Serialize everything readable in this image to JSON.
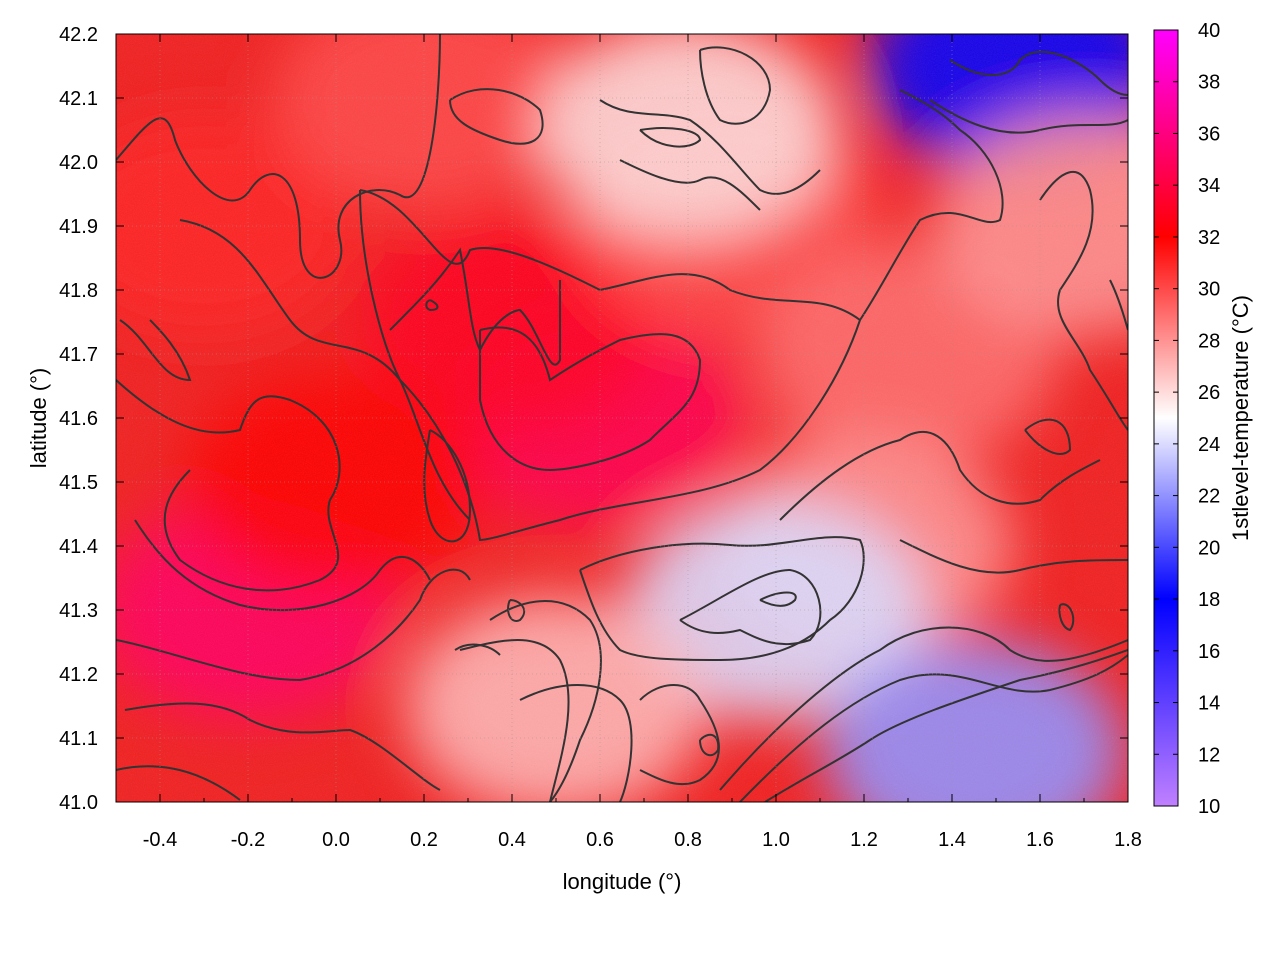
{
  "chart_data": {
    "type": "heatmap",
    "title": "",
    "xlabel": "longitude (°)",
    "ylabel": "latitude (°)",
    "colorbar_label": "1stlevel-temperature (°C)",
    "xlim": [
      -0.5,
      1.8
    ],
    "ylim": [
      41.0,
      42.2
    ],
    "x_ticks": [
      "-0.4",
      "-0.2",
      "0.0",
      "0.2",
      "0.4",
      "0.6",
      "0.8",
      "1.0",
      "1.2",
      "1.4",
      "1.6",
      "1.8"
    ],
    "x_tick_values": [
      -0.4,
      -0.2,
      0.0,
      0.2,
      0.4,
      0.6,
      0.8,
      1.0,
      1.2,
      1.4,
      1.6,
      1.8
    ],
    "y_ticks": [
      "41.0",
      "41.1",
      "41.2",
      "41.3",
      "41.4",
      "41.5",
      "41.6",
      "41.7",
      "41.8",
      "41.9",
      "42.0",
      "42.1",
      "42.2"
    ],
    "y_tick_values": [
      41.0,
      41.1,
      41.2,
      41.3,
      41.4,
      41.5,
      41.6,
      41.7,
      41.8,
      41.9,
      42.0,
      42.1,
      42.2
    ],
    "colorbar_ticks": [
      "10",
      "12",
      "14",
      "16",
      "18",
      "20",
      "22",
      "24",
      "26",
      "28",
      "30",
      "32",
      "34",
      "36",
      "38",
      "40"
    ],
    "colorbar_range": [
      10,
      40
    ],
    "colormap": [
      {
        "value": 10,
        "color": "#c080ff"
      },
      {
        "value": 18,
        "color": "#0000ff"
      },
      {
        "value": 25,
        "color": "#ffffff"
      },
      {
        "value": 32,
        "color": "#ff0000"
      },
      {
        "value": 40,
        "color": "#ff00ff"
      }
    ],
    "grid": "dotted",
    "contour_color": "#333333",
    "regions": [
      {
        "lon": -0.2,
        "lat": 41.3,
        "value": 35
      },
      {
        "lon": 0.6,
        "lat": 41.6,
        "value": 34.5
      },
      {
        "lon": 0.4,
        "lat": 41.75,
        "value": 33
      },
      {
        "lon": 0.0,
        "lat": 41.5,
        "value": 32
      },
      {
        "lon": -0.3,
        "lat": 41.9,
        "value": 31
      },
      {
        "lon": 0.2,
        "lat": 42.1,
        "value": 30
      },
      {
        "lon": 0.9,
        "lat": 41.9,
        "value": 30
      },
      {
        "lon": 1.3,
        "lat": 41.7,
        "value": 29
      },
      {
        "lon": 1.2,
        "lat": 41.4,
        "value": 28
      },
      {
        "lon": 0.8,
        "lat": 42.05,
        "value": 26
      },
      {
        "lon": 1.0,
        "lat": 41.3,
        "value": 24
      },
      {
        "lon": 1.55,
        "lat": 42.15,
        "value": 18
      },
      {
        "lon": 1.45,
        "lat": 41.08,
        "value": 22
      },
      {
        "lon": 0.5,
        "lat": 41.15,
        "value": 27
      },
      {
        "lon": 1.7,
        "lat": 41.9,
        "value": 28
      }
    ]
  }
}
